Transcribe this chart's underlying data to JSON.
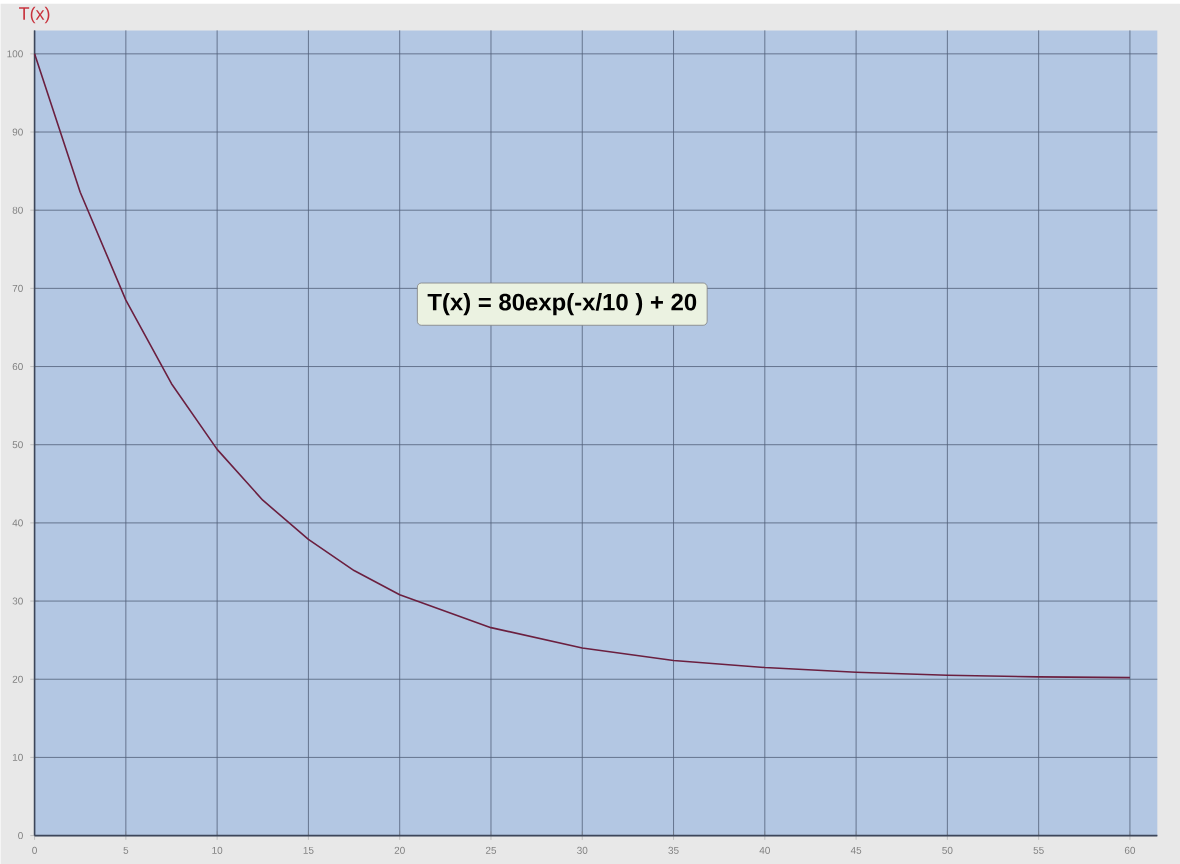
{
  "chart_data": {
    "type": "line",
    "ylabel": "T(x)",
    "annotations": [
      "T(x) = 80exp(-x/10 ) + 20"
    ],
    "x": [
      0,
      2.5,
      5,
      7.5,
      10,
      12.5,
      15,
      17.5,
      20,
      25,
      30,
      35,
      40,
      45,
      50,
      55,
      60
    ],
    "series": [
      {
        "color": "#6b1f3f",
        "values": [
          100,
          82.3,
          68.5,
          57.8,
          49.4,
          42.9,
          37.9,
          33.9,
          30.8,
          26.6,
          24.0,
          22.4,
          21.5,
          20.9,
          20.5,
          20.3,
          20.2
        ]
      }
    ],
    "xlim": [
      0,
      61.5
    ],
    "ylim": [
      0,
      103
    ],
    "xticks": [
      0,
      5,
      10,
      15,
      20,
      25,
      30,
      35,
      40,
      45,
      50,
      55,
      60
    ],
    "yticks": [
      0,
      10,
      20,
      30,
      40,
      50,
      60,
      70,
      80,
      90,
      100
    ],
    "grid": true,
    "marker": "none",
    "line_style": "solid"
  }
}
